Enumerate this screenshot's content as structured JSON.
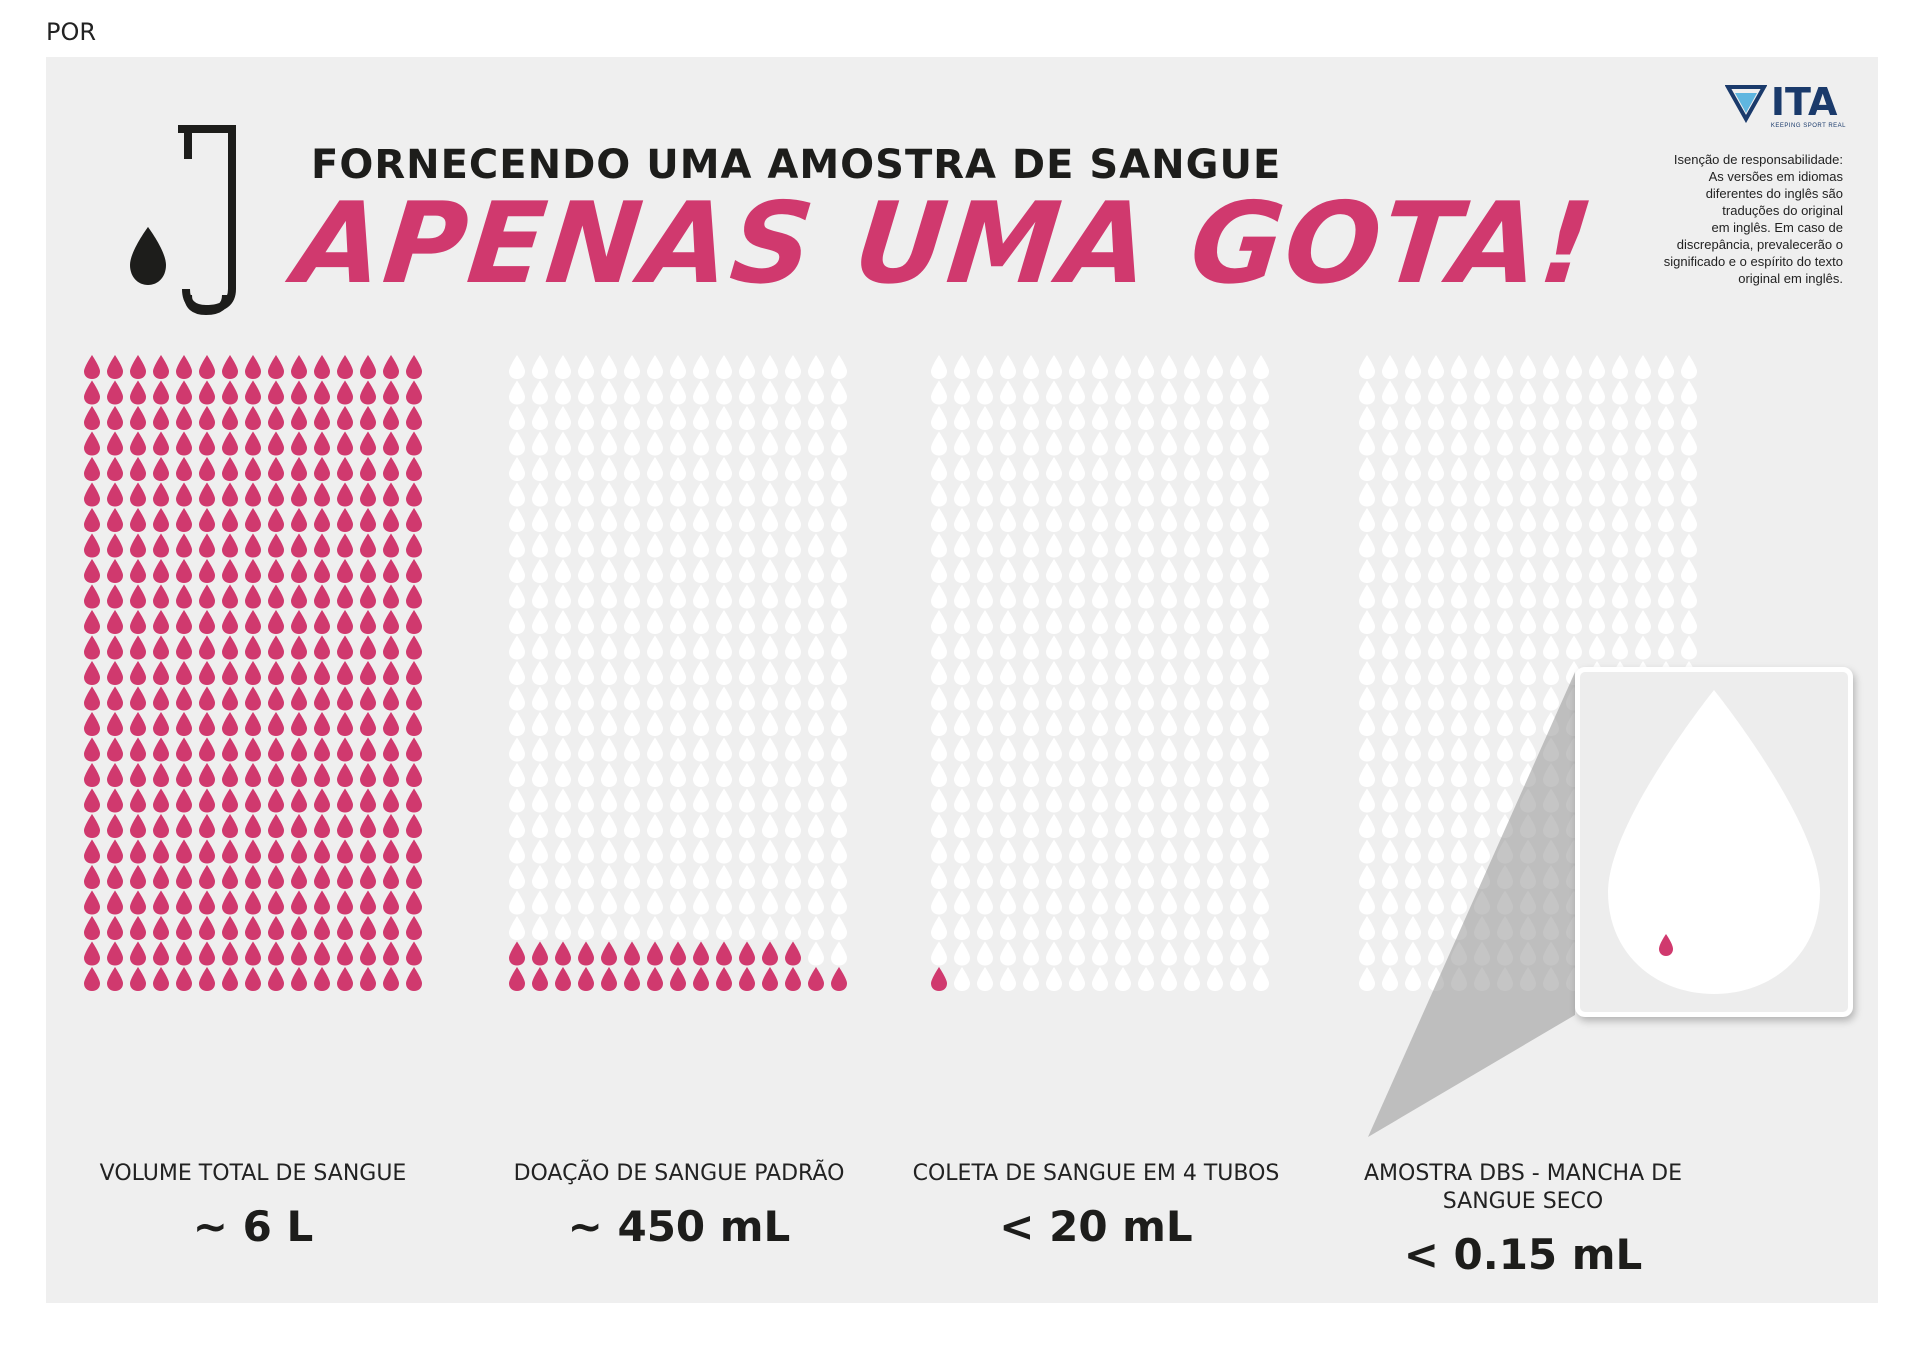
{
  "language_tag": "POR",
  "heading": {
    "small": "FORNECENDO UMA AMOSTRA DE SANGUE",
    "big": "APENAS UMA GOTA!"
  },
  "logo": {
    "name": "ITA",
    "tagline": "KEEPING SPORT REAL"
  },
  "disclaimer": "Isenção de responsabilidade:\nAs versões em idiomas\ndiferentes do inglês são\ntraduções do original\nem inglês. Em caso de\ndiscrepância, prevalecerão o\nsignificado e o espírito do texto\noriginal em inglês.",
  "colors": {
    "accent": "#d0396e",
    "panel": "#efefef",
    "drop_empty": "#ffffff",
    "logo": "#1a3a6b"
  },
  "columns": [
    {
      "label": "VOLUME TOTAL DE SANGUE",
      "value": "~ 6 L",
      "filled_drops": 375
    },
    {
      "label": "DOAÇÃO DE SANGUE PADRÃO",
      "value": "~ 450 mL",
      "filled_drops": 28
    },
    {
      "label": "COLETA DE SANGUE EM 4 TUBOS",
      "value": "< 20 mL",
      "filled_drops": 1
    },
    {
      "label": "AMOSTRA DBS - MANCHA DE SANGUE SECO",
      "value": "< 0.15 mL",
      "filled_drops": 0
    }
  ],
  "icons": {
    "tube": "blood-tube-icon",
    "drop": "blood-drop-icon",
    "logo": "ita-shield-icon"
  }
}
